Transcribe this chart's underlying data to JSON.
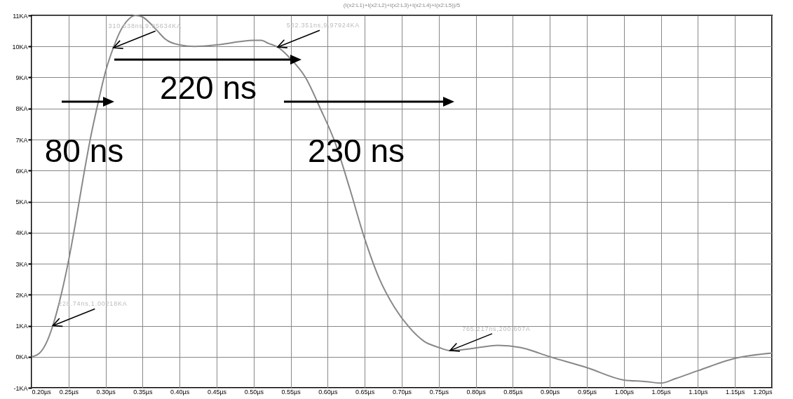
{
  "chart_data": {
    "type": "line",
    "title": "(I(x2:L1)+I(x2:L2)+I(x2:L3)+I(x2:L4)+I(x2:L5))/5",
    "x": [
      0.2,
      0.21,
      0.22,
      0.2287,
      0.24,
      0.25,
      0.26,
      0.27,
      0.28,
      0.29,
      0.3,
      0.3105,
      0.32,
      0.33,
      0.34,
      0.35,
      0.36,
      0.37,
      0.38,
      0.4,
      0.42,
      0.45,
      0.48,
      0.5,
      0.51,
      0.52,
      0.5324,
      0.55,
      0.57,
      0.59,
      0.61,
      0.63,
      0.65,
      0.67,
      0.69,
      0.71,
      0.73,
      0.75,
      0.765,
      0.79,
      0.83,
      0.86,
      0.9,
      0.95,
      1.0,
      1.03,
      1.05,
      1.07,
      1.1,
      1.15,
      1.2
    ],
    "series": [
      {
        "color": "#888888",
        "values": [
          0.0,
          0.1,
          0.45,
          1.0,
          2.0,
          3.1,
          4.4,
          5.8,
          7.1,
          8.2,
          9.2,
          9.96,
          10.5,
          10.85,
          11.0,
          10.95,
          10.75,
          10.5,
          10.25,
          10.05,
          10.0,
          10.05,
          10.15,
          10.2,
          10.2,
          10.1,
          9.98,
          9.6,
          9.0,
          8.0,
          6.9,
          5.4,
          3.8,
          2.5,
          1.6,
          0.95,
          0.5,
          0.3,
          0.2,
          0.25,
          0.37,
          0.3,
          0.0,
          -0.35,
          -0.75,
          -0.8,
          -0.85,
          -0.7,
          -0.45,
          -0.05,
          0.12
        ]
      }
    ],
    "xlim": [
      0.2,
      1.2
    ],
    "xticks": [
      {
        "value": 0.2,
        "label": "0.20µs"
      },
      {
        "value": 0.25,
        "label": "0.25µs"
      },
      {
        "value": 0.3,
        "label": "0.30µs"
      },
      {
        "value": 0.35,
        "label": "0.35µs"
      },
      {
        "value": 0.4,
        "label": "0.40µs"
      },
      {
        "value": 0.45,
        "label": "0.45µs"
      },
      {
        "value": 0.5,
        "label": "0.50µs"
      },
      {
        "value": 0.55,
        "label": "0.55µs"
      },
      {
        "value": 0.6,
        "label": "0.60µs"
      },
      {
        "value": 0.65,
        "label": "0.65µs"
      },
      {
        "value": 0.7,
        "label": "0.70µs"
      },
      {
        "value": 0.75,
        "label": "0.75µs"
      },
      {
        "value": 0.8,
        "label": "0.80µs"
      },
      {
        "value": 0.85,
        "label": "0.85µs"
      },
      {
        "value": 0.9,
        "label": "0.90µs"
      },
      {
        "value": 0.95,
        "label": "0.95µs"
      },
      {
        "value": 1.0,
        "label": "1.00µs"
      },
      {
        "value": 1.05,
        "label": "1.05µs"
      },
      {
        "value": 1.1,
        "label": "1.10µs"
      },
      {
        "value": 1.15,
        "label": "1.15µs"
      },
      {
        "value": 1.2,
        "label": "1.20µs"
      }
    ],
    "ylim": [
      -1,
      11
    ],
    "yticks": [
      {
        "value": -1,
        "label": "-1KA"
      },
      {
        "value": 0,
        "label": "0KA"
      },
      {
        "value": 1,
        "label": "1KA"
      },
      {
        "value": 2,
        "label": "2KA"
      },
      {
        "value": 3,
        "label": "3KA"
      },
      {
        "value": 4,
        "label": "4KA"
      },
      {
        "value": 5,
        "label": "5KA"
      },
      {
        "value": 6,
        "label": "6KA"
      },
      {
        "value": 7,
        "label": "7KA"
      },
      {
        "value": 8,
        "label": "8KA"
      },
      {
        "value": 9,
        "label": "9KA"
      },
      {
        "value": 10,
        "label": "10KA"
      },
      {
        "value": 11,
        "label": "11KA"
      }
    ],
    "grid": true,
    "marker": "none",
    "annotations": [
      {
        "text": "310.538ns,9.95634KA",
        "x": 0.310538,
        "y": 9.95634
      },
      {
        "text": "532.351ns,9.97924KA",
        "x": 0.532351,
        "y": 9.97924
      },
      {
        "text": "228.74ns,1.00218KA",
        "x": 0.22874,
        "y": 1.00218
      },
      {
        "text": "765.217ns,200.607A",
        "x": 0.765217,
        "y": 0.200607
      },
      "80 ns",
      "220 ns",
      "230 ns"
    ]
  }
}
